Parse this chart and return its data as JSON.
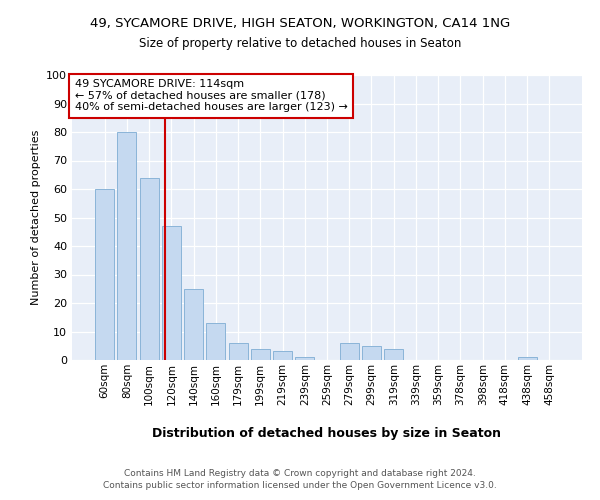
{
  "title": "49, SYCAMORE DRIVE, HIGH SEATON, WORKINGTON, CA14 1NG",
  "subtitle": "Size of property relative to detached houses in Seaton",
  "xlabel": "Distribution of detached houses by size in Seaton",
  "ylabel": "Number of detached properties",
  "categories": [
    "60sqm",
    "80sqm",
    "100sqm",
    "120sqm",
    "140sqm",
    "160sqm",
    "179sqm",
    "199sqm",
    "219sqm",
    "239sqm",
    "259sqm",
    "279sqm",
    "299sqm",
    "319sqm",
    "339sqm",
    "359sqm",
    "378sqm",
    "398sqm",
    "418sqm",
    "438sqm",
    "458sqm"
  ],
  "values": [
    60,
    80,
    64,
    47,
    25,
    13,
    6,
    4,
    3,
    1,
    0,
    6,
    5,
    4,
    0,
    0,
    0,
    0,
    0,
    1,
    0
  ],
  "bar_color": "#c5d9f0",
  "bar_edge_color": "#8ab4d8",
  "vline_color": "#cc0000",
  "annotation_box_edge": "#cc0000",
  "background_color": "#e8eef8",
  "marker_label": "49 SYCAMORE DRIVE: 114sqm",
  "annotation_line1": "← 57% of detached houses are smaller (178)",
  "annotation_line2": "40% of semi-detached houses are larger (123) →",
  "footer_text": "Contains HM Land Registry data © Crown copyright and database right 2024.\nContains public sector information licensed under the Open Government Licence v3.0.",
  "ylim": [
    0,
    100
  ],
  "yticks": [
    0,
    10,
    20,
    30,
    40,
    50,
    60,
    70,
    80,
    90,
    100
  ],
  "vline_x": 2.7
}
